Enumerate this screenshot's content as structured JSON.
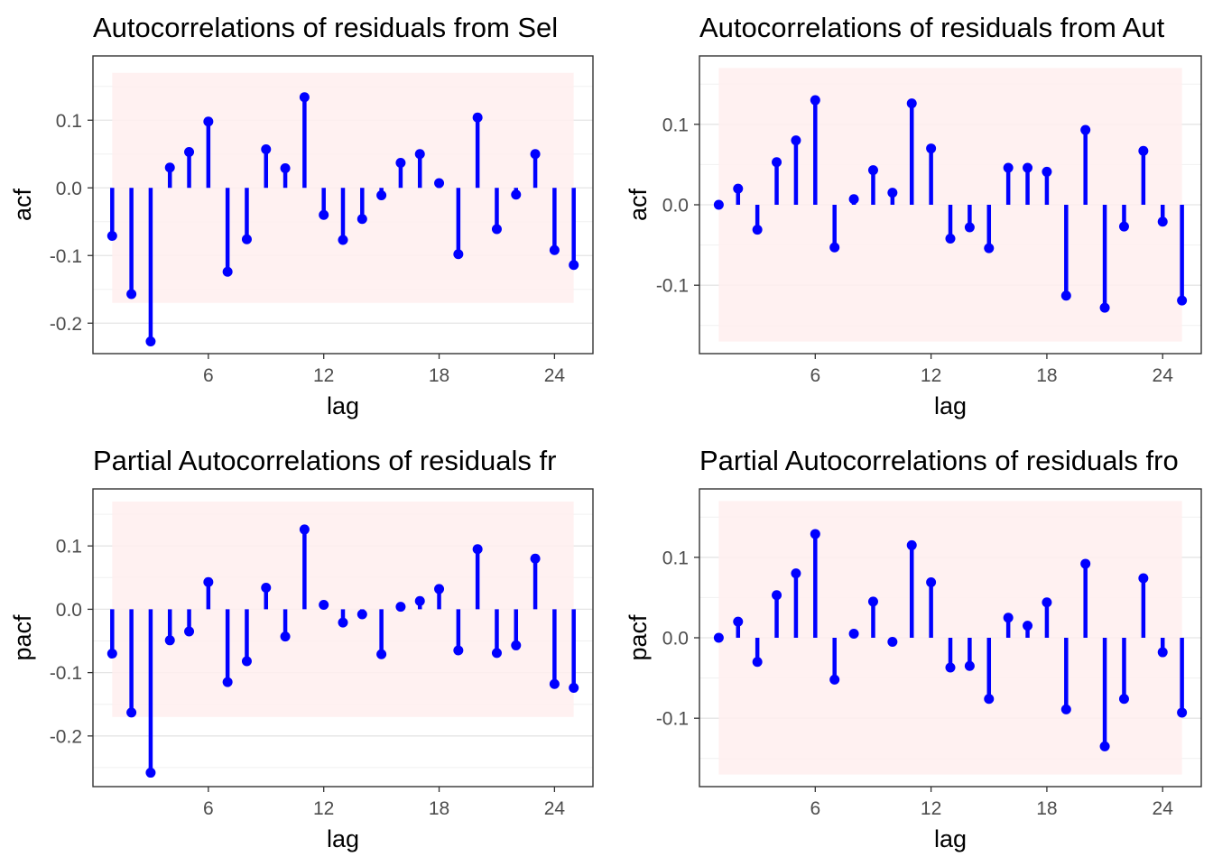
{
  "colors": {
    "stem": "#0000ff",
    "band": "#ffeeee",
    "grid": "#e5e5e5",
    "frame": "#333333",
    "tick_text": "#4d4d4d"
  },
  "chart_data": [
    {
      "type": "lollipop",
      "title": "Autocorrelations of residuals from Sel",
      "xlabel": "lag",
      "ylabel": "acf",
      "x_ticks": [
        "6",
        "12",
        "18",
        "24"
      ],
      "y_ticks": [
        "0.1",
        "0.0",
        "-0.1",
        "-0.2"
      ],
      "y_tick_values": [
        0.1,
        0.0,
        -0.1,
        -0.2
      ],
      "xlim": [
        0,
        26
      ],
      "ylim": [
        -0.245,
        0.195
      ],
      "ci": [
        -0.17,
        0.17
      ],
      "x": [
        1,
        2,
        3,
        4,
        5,
        6,
        7,
        8,
        9,
        10,
        11,
        12,
        13,
        14,
        15,
        16,
        17,
        18,
        19,
        20,
        21,
        22,
        23,
        24,
        25
      ],
      "values": [
        -0.071,
        -0.157,
        -0.227,
        0.03,
        0.053,
        0.098,
        -0.124,
        -0.076,
        0.057,
        0.029,
        0.134,
        -0.04,
        -0.077,
        -0.046,
        -0.011,
        0.037,
        0.05,
        0.007,
        -0.098,
        0.104,
        -0.061,
        -0.01,
        0.05,
        -0.092,
        -0.114
      ]
    },
    {
      "type": "lollipop",
      "title": "Autocorrelations of residuals from Aut",
      "xlabel": "lag",
      "ylabel": "acf",
      "x_ticks": [
        "6",
        "12",
        "18",
        "24"
      ],
      "y_ticks": [
        "0.1",
        "0.0",
        "-0.1"
      ],
      "y_tick_values": [
        0.1,
        0.0,
        -0.1
      ],
      "xlim": [
        0,
        26
      ],
      "ylim": [
        -0.185,
        0.185
      ],
      "ci": [
        -0.17,
        0.17
      ],
      "x": [
        1,
        2,
        3,
        4,
        5,
        6,
        7,
        8,
        9,
        10,
        11,
        12,
        13,
        14,
        15,
        16,
        17,
        18,
        19,
        20,
        21,
        22,
        23,
        24,
        25
      ],
      "values": [
        0.0,
        0.02,
        -0.031,
        0.053,
        0.08,
        0.13,
        -0.053,
        0.007,
        0.043,
        0.015,
        0.126,
        0.07,
        -0.042,
        -0.028,
        -0.054,
        0.046,
        0.046,
        0.041,
        -0.113,
        0.093,
        -0.128,
        -0.027,
        0.067,
        -0.021,
        -0.119
      ]
    },
    {
      "type": "lollipop",
      "title": "Partial Autocorrelations of residuals fr",
      "xlabel": "lag",
      "ylabel": "pacf",
      "x_ticks": [
        "6",
        "12",
        "18",
        "24"
      ],
      "y_ticks": [
        "0.1",
        "0.0",
        "-0.1",
        "-0.2"
      ],
      "y_tick_values": [
        0.1,
        0.0,
        -0.1,
        -0.2
      ],
      "xlim": [
        0,
        26
      ],
      "ylim": [
        -0.28,
        0.19
      ],
      "ci": [
        -0.17,
        0.17
      ],
      "x": [
        1,
        2,
        3,
        4,
        5,
        6,
        7,
        8,
        9,
        10,
        11,
        12,
        13,
        14,
        15,
        16,
        17,
        18,
        19,
        20,
        21,
        22,
        23,
        24,
        25
      ],
      "values": [
        -0.07,
        -0.163,
        -0.258,
        -0.049,
        -0.035,
        0.043,
        -0.115,
        -0.082,
        0.034,
        -0.043,
        0.126,
        0.007,
        -0.021,
        -0.008,
        -0.071,
        0.004,
        0.013,
        0.032,
        -0.065,
        0.095,
        -0.069,
        -0.057,
        0.08,
        -0.118,
        -0.124
      ]
    },
    {
      "type": "lollipop",
      "title": "Partial Autocorrelations of residuals fro",
      "xlabel": "lag",
      "ylabel": "pacf",
      "x_ticks": [
        "6",
        "12",
        "18",
        "24"
      ],
      "y_ticks": [
        "0.1",
        "0.0",
        "-0.1"
      ],
      "y_tick_values": [
        0.1,
        0.0,
        -0.1
      ],
      "xlim": [
        0,
        26
      ],
      "ylim": [
        -0.185,
        0.185
      ],
      "ci": [
        -0.17,
        0.17
      ],
      "x": [
        1,
        2,
        3,
        4,
        5,
        6,
        7,
        8,
        9,
        10,
        11,
        12,
        13,
        14,
        15,
        16,
        17,
        18,
        19,
        20,
        21,
        22,
        23,
        24,
        25
      ],
      "values": [
        0.0,
        0.02,
        -0.03,
        0.053,
        0.08,
        0.129,
        -0.052,
        0.005,
        0.045,
        -0.005,
        0.115,
        0.069,
        -0.037,
        -0.035,
        -0.076,
        0.025,
        0.015,
        0.044,
        -0.089,
        0.092,
        -0.135,
        -0.076,
        0.074,
        -0.018,
        -0.093
      ]
    }
  ]
}
